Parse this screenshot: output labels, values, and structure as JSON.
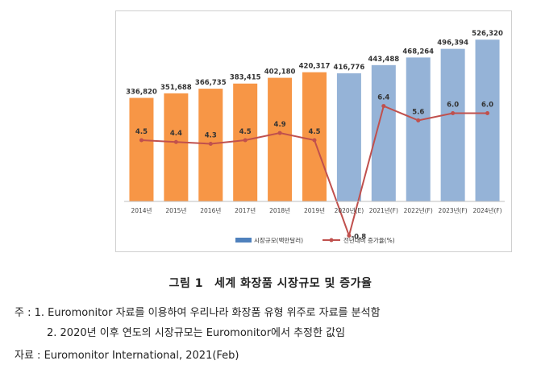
{
  "chart_data": {
    "type": "bar+line",
    "categories": [
      "2014년",
      "2015년",
      "2016년",
      "2017년",
      "2018년",
      "2019년",
      "2020년(E)",
      "2021년(F)",
      "2022년(F)",
      "2023년(F)",
      "2024년(F)"
    ],
    "series": [
      {
        "name": "시장규모(백만달러)",
        "kind": "bar",
        "values": [
          336820,
          351688,
          366735,
          383415,
          402180,
          420317,
          416776,
          443488,
          468264,
          496394,
          526320
        ],
        "labels": [
          "336,820",
          "351,688",
          "366,735",
          "383,415",
          "402,180",
          "420,317",
          "416,776",
          "443,488",
          "468,264",
          "496,394",
          "526,320"
        ],
        "colors": [
          "#f79646",
          "#f79646",
          "#f79646",
          "#f79646",
          "#f79646",
          "#f79646",
          "#95b3d7",
          "#95b3d7",
          "#95b3d7",
          "#95b3d7",
          "#95b3d7"
        ]
      },
      {
        "name": "전년대비 증가율(%)",
        "kind": "line",
        "color": "#c0504d",
        "values": [
          4.5,
          4.4,
          4.3,
          4.5,
          4.9,
          4.5,
          -0.8,
          6.4,
          5.6,
          6.0,
          6.0
        ],
        "labels": [
          "4.5",
          "4.4",
          "4.3",
          "4.5",
          "4.9",
          "4.5",
          "-0.8",
          "6.4",
          "5.6",
          "6.0",
          "6.0"
        ]
      }
    ],
    "bar_ylim": [
      0,
      540000
    ],
    "line_ylim": [
      -1.5,
      10.5
    ],
    "legend": [
      {
        "label": "시장규모(백만달러)",
        "color": "#4f81bd",
        "kind": "bar"
      },
      {
        "label": "전년대비 증가율(%)",
        "color": "#c0504d",
        "kind": "line"
      }
    ],
    "legend_position": "bottom-center",
    "title": "그림 1   세계 화장품 시장규모 및 증가율"
  },
  "caption": {
    "label": "그림 1",
    "text": "세계 화장품 시장규모 및 증가율"
  },
  "notes": {
    "note1": "주 : 1. Euromonitor 자료를 이용하여 우리나라 화장품 유형 위주로 자료를 분석함",
    "note2": "2. 2020년 이후 연도의 시장규모는 Euromonitor에서 추정한 값임",
    "source": "자료 : Euromonitor International, 2021(Feb)"
  }
}
